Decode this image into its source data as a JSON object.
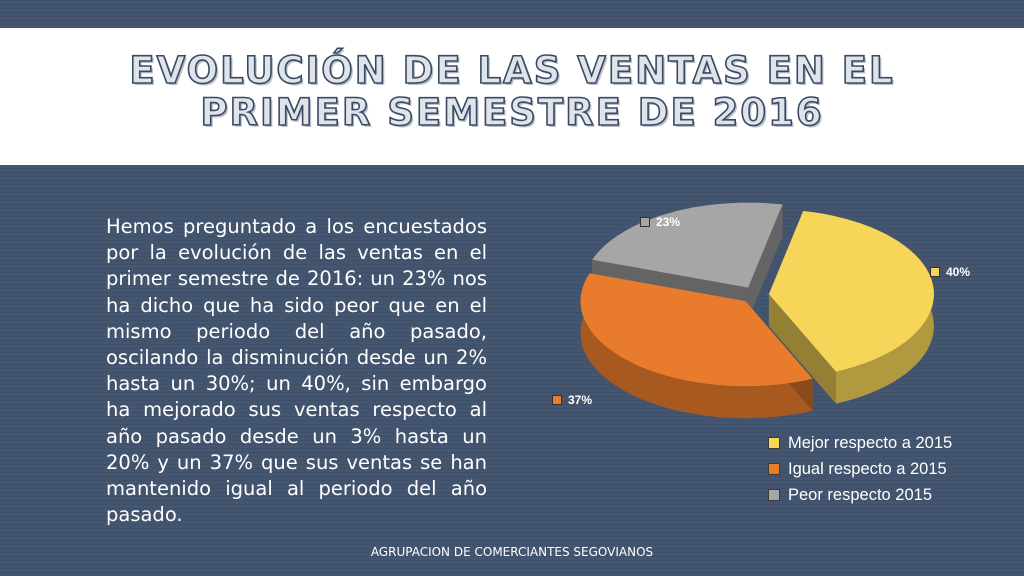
{
  "slide": {
    "title_line1": "EVOLUCIÓN DE LAS VENTAS EN EL",
    "title_line2": "PRIMER SEMESTRE DE 2016",
    "body": "Hemos preguntado a los encuestados por la evolución de las ventas en el primer semestre de 2016: un 23% nos ha dicho que ha sido peor que en el mismo periodo del año pasado, oscilando la disminución desde un 2% hasta un 30%; un 40%, sin embargo ha mejorado sus ventas respecto al año pasado desde un 3% hasta un 20% y un 37% que sus ventas se han mantenido igual al periodo del año pasado.",
    "footer": "AGRUPACION DE COMERCIANTES SEGOVIANOS"
  },
  "chart_data": {
    "type": "pie",
    "style": "3d-exploded",
    "categories": [
      "Mejor respecto a 2015",
      "Igual respecto a 2015",
      "Peor respecto 2015"
    ],
    "values": [
      40,
      37,
      23
    ],
    "data_labels": [
      "40%",
      "37%",
      "23%"
    ],
    "colors": [
      "#f6d558",
      "#e87b2c",
      "#a6a6a6"
    ],
    "legend": "bottom-right"
  }
}
